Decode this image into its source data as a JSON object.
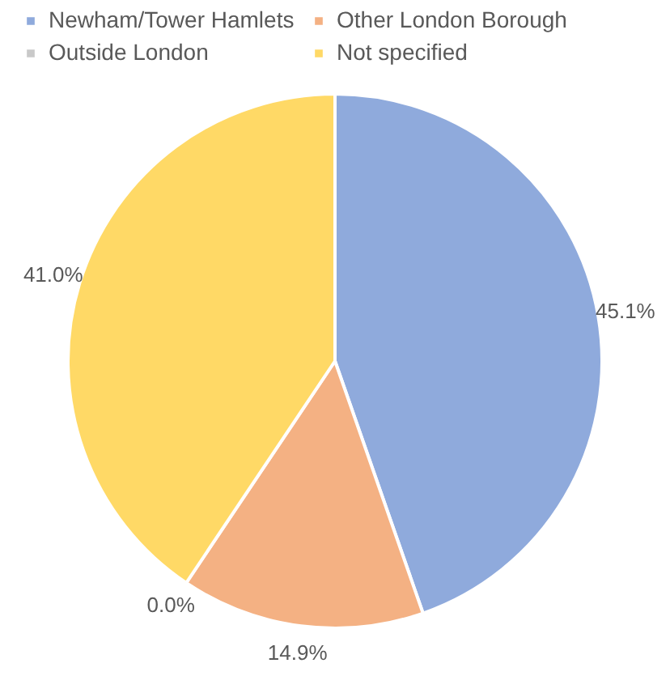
{
  "chart_data": {
    "type": "pie",
    "categories": [
      "Newham/Tower Hamlets",
      "Other London Borough",
      "Outside London",
      "Not specified"
    ],
    "values": [
      45.1,
      14.9,
      0.0,
      41.0
    ],
    "colors": [
      "#8faadc",
      "#f4b183",
      "#c9c9c9",
      "#ffd966"
    ],
    "value_labels": [
      "45.1%",
      "14.9%",
      "0.0%",
      "41.0%"
    ],
    "legend": "top"
  }
}
